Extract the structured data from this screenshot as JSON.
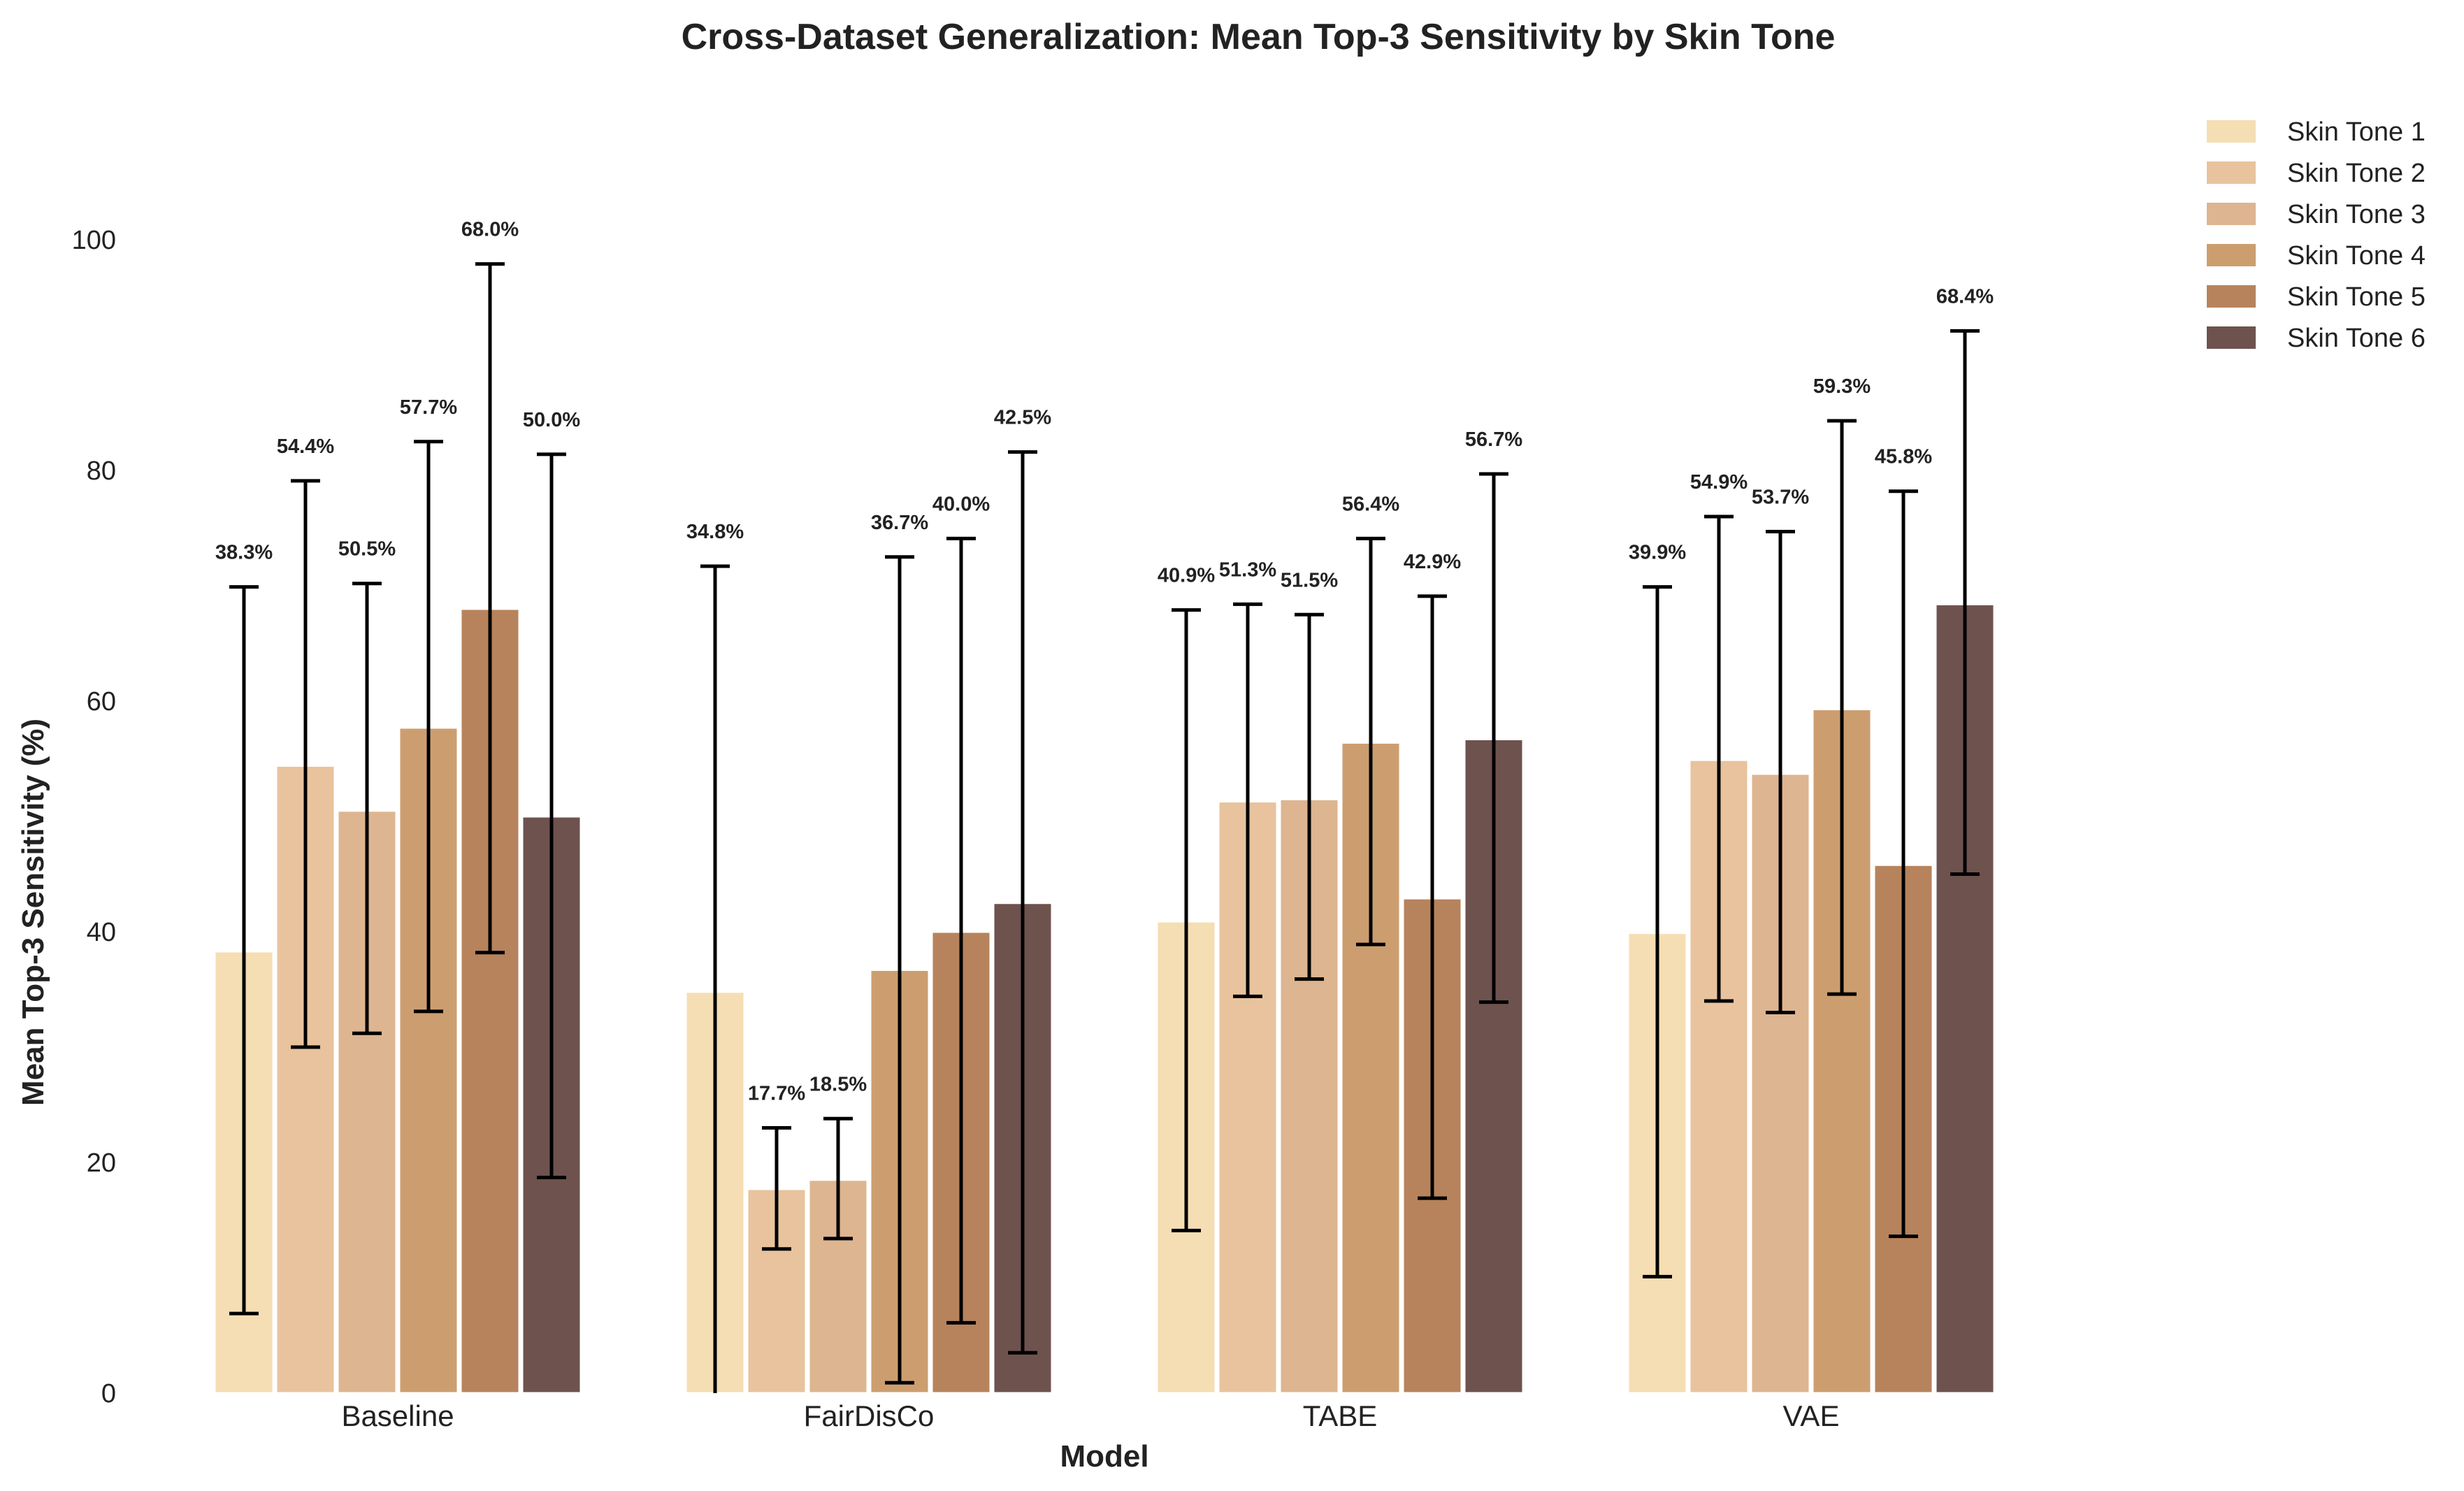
{
  "chart_data": {
    "type": "bar",
    "title": "Cross-Dataset Generalization: Mean Top-3 Sensitivity by Skin Tone",
    "xlabel": "Model",
    "ylabel": "Mean Top-3 Sensitivity (%)",
    "categories": [
      "Baseline",
      "FairDisCo",
      "TABE",
      "VAE"
    ],
    "ylim": [
      0,
      100
    ],
    "yticks": [
      0,
      20,
      40,
      60,
      80,
      100
    ],
    "grid": false,
    "legend_position": "top-right, outside",
    "series": [
      {
        "name": "Skin Tone 1",
        "color": "#F5DEB3",
        "values": [
          38.3,
          34.8,
          40.9,
          39.9
        ],
        "err_low": [
          6.9,
          0.0,
          14.1,
          10.1
        ],
        "err_high": [
          69.9,
          71.7,
          67.9,
          69.9
        ],
        "labels": [
          "38.3%",
          "34.8%",
          "40.9%",
          "39.9%"
        ]
      },
      {
        "name": "Skin Tone 2",
        "color": "#E8C39E",
        "values": [
          54.4,
          17.7,
          51.3,
          54.9
        ],
        "err_low": [
          30.0,
          12.5,
          34.4,
          34.0
        ],
        "err_high": [
          79.1,
          23.0,
          68.4,
          76.0
        ],
        "labels": [
          "54.4%",
          "17.7%",
          "51.3%",
          "54.9%"
        ]
      },
      {
        "name": "Skin Tone 3",
        "color": "#DDB590",
        "values": [
          50.5,
          18.5,
          51.5,
          53.7
        ],
        "err_low": [
          31.2,
          13.4,
          35.9,
          33.0
        ],
        "err_high": [
          70.2,
          23.8,
          67.5,
          74.7
        ],
        "labels": [
          "50.5%",
          "18.5%",
          "51.5%",
          "53.7%"
        ]
      },
      {
        "name": "Skin Tone 4",
        "color": "#CC9E6F",
        "values": [
          57.7,
          36.7,
          56.4,
          59.3
        ],
        "err_low": [
          33.1,
          0.9,
          38.9,
          34.6
        ],
        "err_high": [
          82.5,
          72.5,
          74.1,
          84.3
        ],
        "labels": [
          "57.7%",
          "36.7%",
          "56.4%",
          "59.3%"
        ]
      },
      {
        "name": "Skin Tone 5",
        "color": "#B7835C",
        "values": [
          68.0,
          40.0,
          42.9,
          45.8
        ],
        "err_low": [
          38.2,
          6.1,
          16.9,
          13.6
        ],
        "err_high": [
          97.9,
          74.1,
          69.1,
          78.2
        ],
        "labels": [
          "68.0%",
          "40.0%",
          "42.9%",
          "45.8%"
        ]
      },
      {
        "name": "Skin Tone 6",
        "color": "#6E524E",
        "values": [
          50.0,
          42.5,
          56.7,
          68.4
        ],
        "err_low": [
          18.7,
          3.5,
          33.9,
          45.0
        ],
        "err_high": [
          81.4,
          81.6,
          79.7,
          92.1
        ],
        "labels": [
          "50.0%",
          "42.5%",
          "56.7%",
          "68.4%"
        ]
      }
    ]
  }
}
